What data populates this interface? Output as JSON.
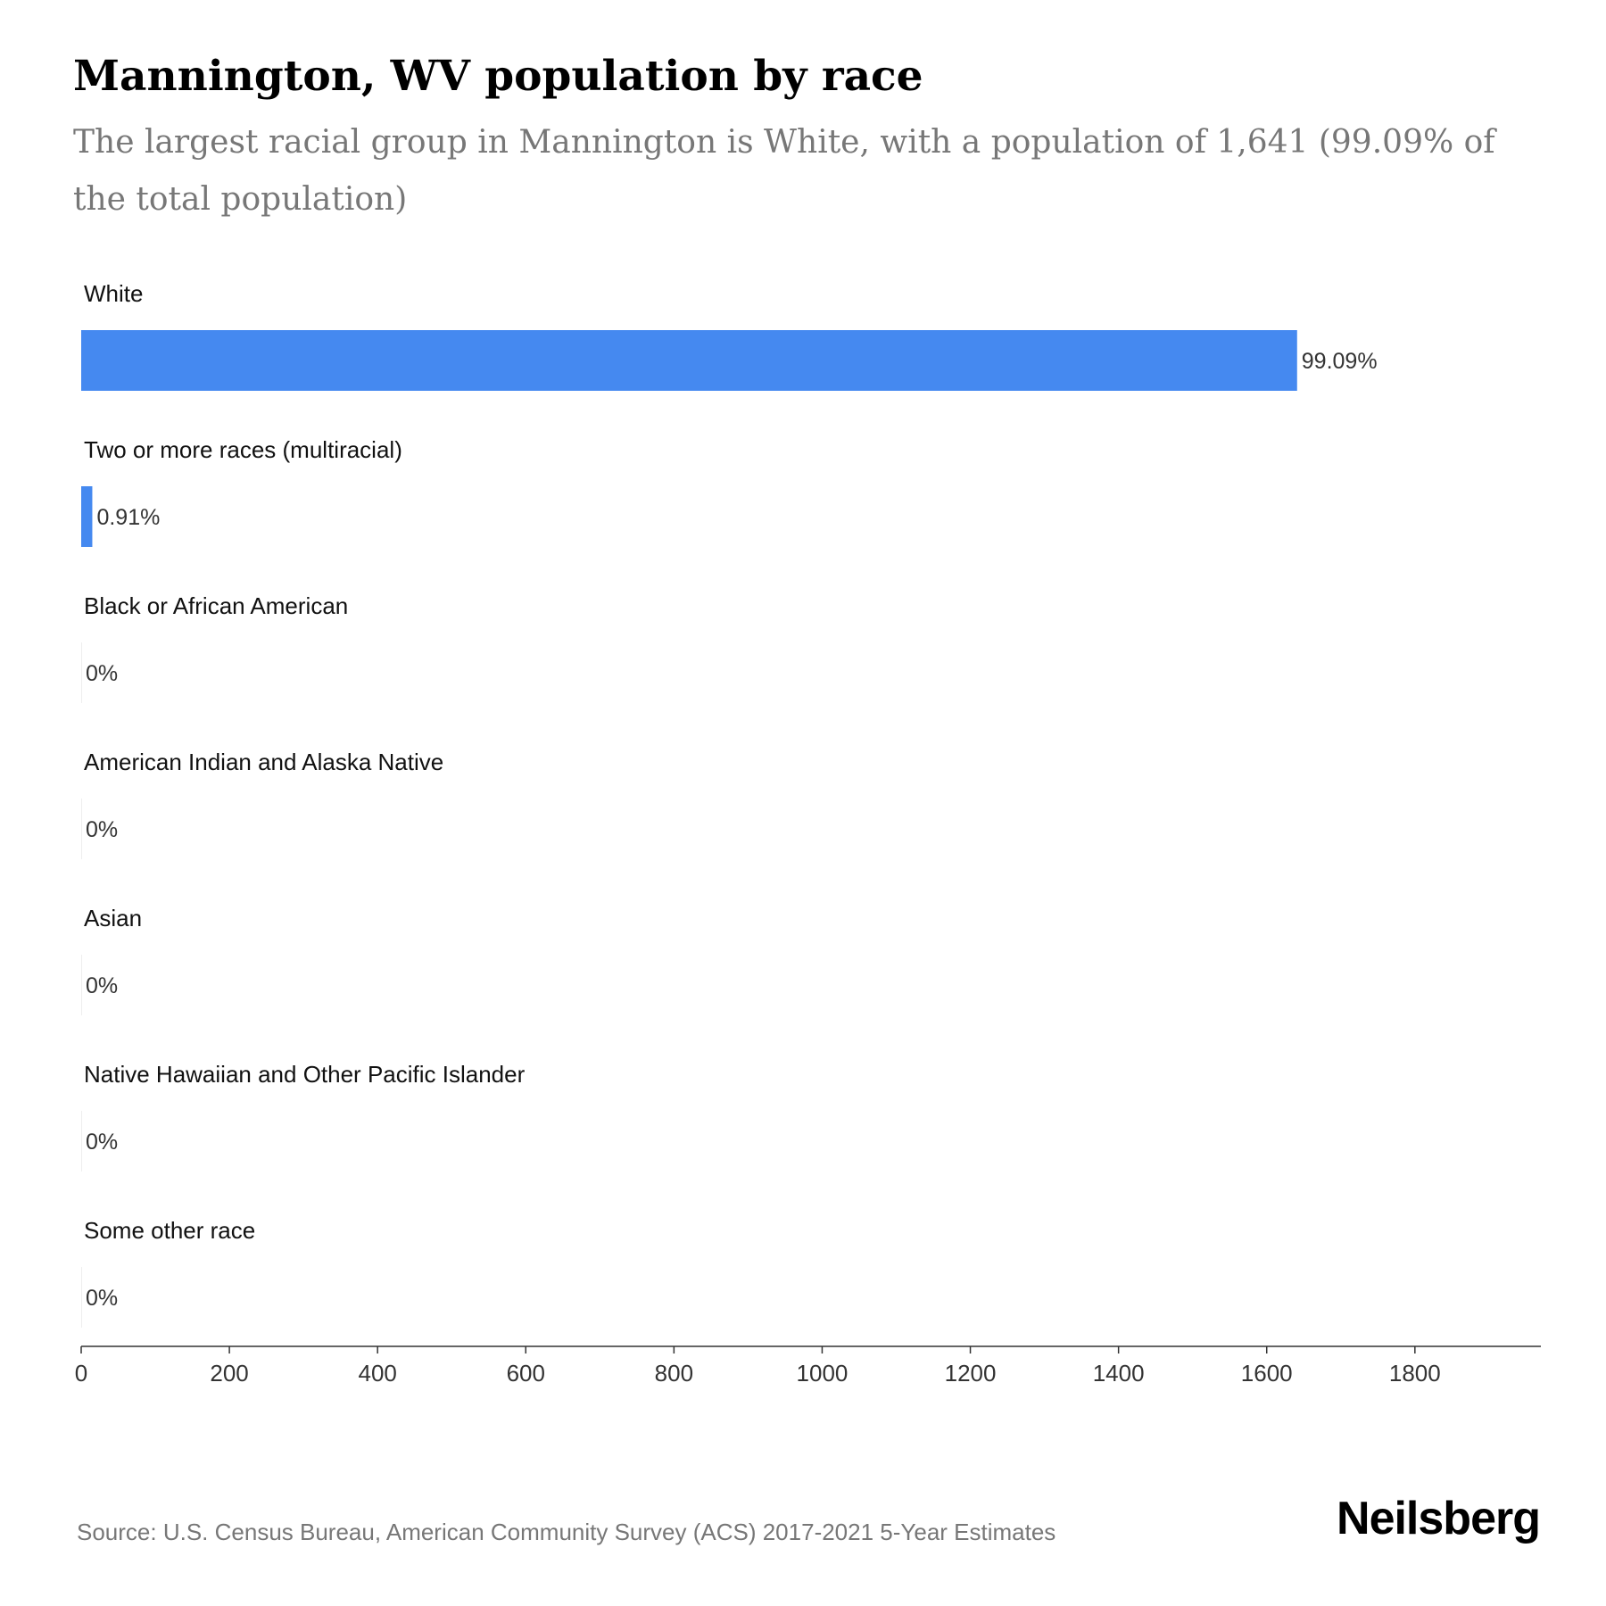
{
  "header": {
    "title": "Mannington, WV population by race",
    "subtitle": "The largest racial group in Mannington is White, with a population of 1,641 (99.09% of the total population)"
  },
  "chart_data": {
    "type": "bar",
    "orientation": "horizontal",
    "categories": [
      "White",
      "Two or more races (multiracial)",
      "Black or African American",
      "American Indian and Alaska Native",
      "Asian",
      "Native Hawaiian and Other Pacific Islander",
      "Some other race"
    ],
    "values": [
      1641,
      15,
      0,
      0,
      0,
      0,
      0
    ],
    "data_labels": [
      "99.09%",
      "0.91%",
      "0%",
      "0%",
      "0%",
      "0%",
      "0%"
    ],
    "x_ticks": [
      0,
      200,
      400,
      600,
      800,
      1000,
      1200,
      1400,
      1600,
      1800
    ],
    "xlim": [
      0,
      1970
    ],
    "bar_color": "#4589f0",
    "grid": false
  },
  "footer": {
    "source": "Source: U.S. Census Bureau, American Community Survey (ACS) 2017-2021 5-Year Estimates",
    "logo": "Neilsberg"
  }
}
